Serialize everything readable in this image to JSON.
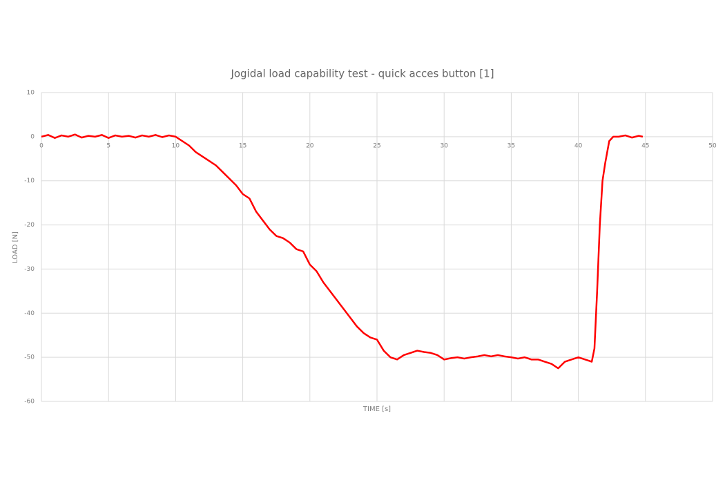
{
  "chart_data": {
    "type": "line",
    "title": "Jogidal load capability test - quick acces button [1]",
    "x_label": "TIME [s]",
    "y_label": "LOAD [N]",
    "x": [
      0,
      0.5,
      1,
      1.5,
      2,
      2.5,
      3,
      3.5,
      4,
      4.5,
      5,
      5.5,
      6,
      6.5,
      7,
      7.5,
      8,
      8.5,
      9,
      9.5,
      10,
      10.5,
      11,
      11.5,
      12,
      12.5,
      13,
      13.5,
      14,
      14.5,
      15,
      15.5,
      16,
      16.5,
      17,
      17.5,
      18,
      18.5,
      19,
      19.5,
      20,
      20.5,
      21,
      21.5,
      22,
      22.5,
      23,
      23.5,
      24,
      24.5,
      25,
      25.5,
      26,
      26.5,
      27,
      27.5,
      28,
      28.5,
      29,
      29.5,
      30,
      30.5,
      31,
      31.5,
      32,
      32.5,
      33,
      33.5,
      34,
      34.5,
      35,
      35.5,
      36,
      36.5,
      37,
      37.5,
      38,
      38.5,
      39,
      39.5,
      40,
      40.5,
      41,
      41.2,
      41.4,
      41.6,
      41.8,
      42,
      42.3,
      42.6,
      43,
      43.5,
      44,
      44.5,
      44.8
    ],
    "values": [
      0,
      0.4,
      -0.3,
      0.3,
      0,
      0.5,
      -0.2,
      0.2,
      0,
      0.4,
      -0.3,
      0.3,
      0,
      0.2,
      -0.2,
      0.3,
      0,
      0.4,
      -0.1,
      0.3,
      0,
      -1,
      -2,
      -3.5,
      -4.5,
      -5.5,
      -6.5,
      -8,
      -9.5,
      -11,
      -13,
      -14,
      -17,
      -19,
      -21,
      -22.5,
      -23,
      -24,
      -25.5,
      -26,
      -29,
      -30.5,
      -33,
      -35,
      -37,
      -39,
      -41,
      -43,
      -44.5,
      -45.5,
      -46,
      -48.5,
      -50,
      -50.5,
      -49.5,
      -49,
      -48.5,
      -48.8,
      -49,
      -49.5,
      -50.5,
      -50.2,
      -50,
      -50.3,
      -50,
      -49.8,
      -49.5,
      -49.8,
      -49.5,
      -49.8,
      -50,
      -50.3,
      -50,
      -50.5,
      -50.5,
      -51,
      -51.5,
      -52.5,
      -51,
      -50.5,
      -50,
      -50.5,
      -51,
      -48,
      -35,
      -20,
      -10,
      -6,
      -1,
      0,
      0,
      0.3,
      -0.2,
      0.2,
      0
    ],
    "color": "#ff0000",
    "xlim": [
      0,
      50
    ],
    "xticks": [
      0,
      5,
      10,
      15,
      20,
      25,
      30,
      35,
      40,
      45,
      50
    ],
    "ylim": [
      -60,
      10
    ],
    "yticks": [
      -60,
      -50,
      -40,
      -30,
      -20,
      -10,
      0,
      10
    ],
    "grid": true
  }
}
